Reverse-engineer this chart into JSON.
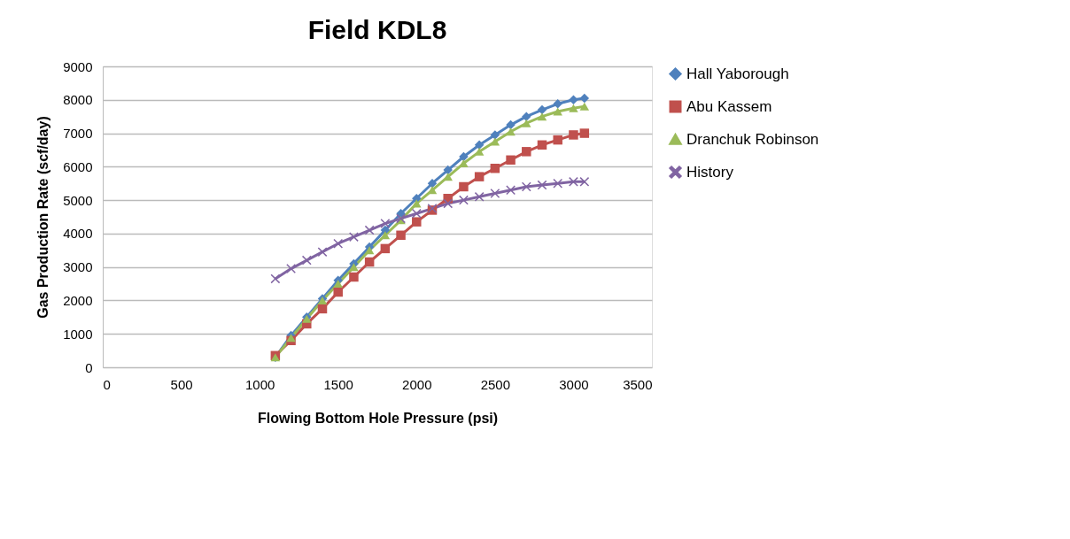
{
  "chart_data": {
    "type": "line",
    "title": "Field KDL8",
    "xlabel": "Flowing Bottom Hole Pressure (psi)",
    "ylabel": "Gas Production Rate  (scf/day)",
    "x": [
      1100,
      1200,
      1300,
      1400,
      1500,
      1600,
      1700,
      1800,
      1900,
      2000,
      2100,
      2200,
      2300,
      2400,
      2500,
      2600,
      2700,
      2800,
      2900,
      3000,
      3070
    ],
    "series": [
      {
        "name": "Hall Yaborough",
        "color": "#4f81bd",
        "marker": "diamond",
        "values": [
          300,
          950,
          1500,
          2050,
          2600,
          3100,
          3600,
          4100,
          4600,
          5050,
          5500,
          5900,
          6300,
          6650,
          6950,
          7250,
          7500,
          7700,
          7880,
          8000,
          8050
        ]
      },
      {
        "name": "Abu Kassem",
        "color": "#c0504d",
        "marker": "square",
        "values": [
          350,
          800,
          1300,
          1750,
          2250,
          2700,
          3150,
          3550,
          3950,
          4350,
          4700,
          5050,
          5400,
          5700,
          5950,
          6200,
          6450,
          6650,
          6800,
          6950,
          7000
        ]
      },
      {
        "name": "Dranchuk Robinson",
        "color": "#9bbb59",
        "marker": "triangle",
        "values": [
          300,
          880,
          1450,
          2000,
          2500,
          3000,
          3500,
          3950,
          4400,
          4900,
          5300,
          5700,
          6100,
          6450,
          6750,
          7050,
          7300,
          7500,
          7650,
          7750,
          7800
        ]
      },
      {
        "name": "History",
        "color": "#8064a2",
        "marker": "cross",
        "values": [
          2650,
          2950,
          3200,
          3450,
          3700,
          3900,
          4100,
          4300,
          4450,
          4600,
          4750,
          4900,
          5000,
          5100,
          5200,
          5300,
          5400,
          5450,
          5500,
          5550,
          5550
        ]
      }
    ],
    "xlim": [
      0,
      3500
    ],
    "xticks": [
      0,
      500,
      1000,
      1500,
      2000,
      2500,
      3000,
      3500
    ],
    "ylim": [
      0,
      9000
    ],
    "yticks": [
      0,
      1000,
      2000,
      3000,
      4000,
      5000,
      6000,
      7000,
      8000,
      9000
    ],
    "grid": "y",
    "legend": "right",
    "line_style": "solid"
  }
}
